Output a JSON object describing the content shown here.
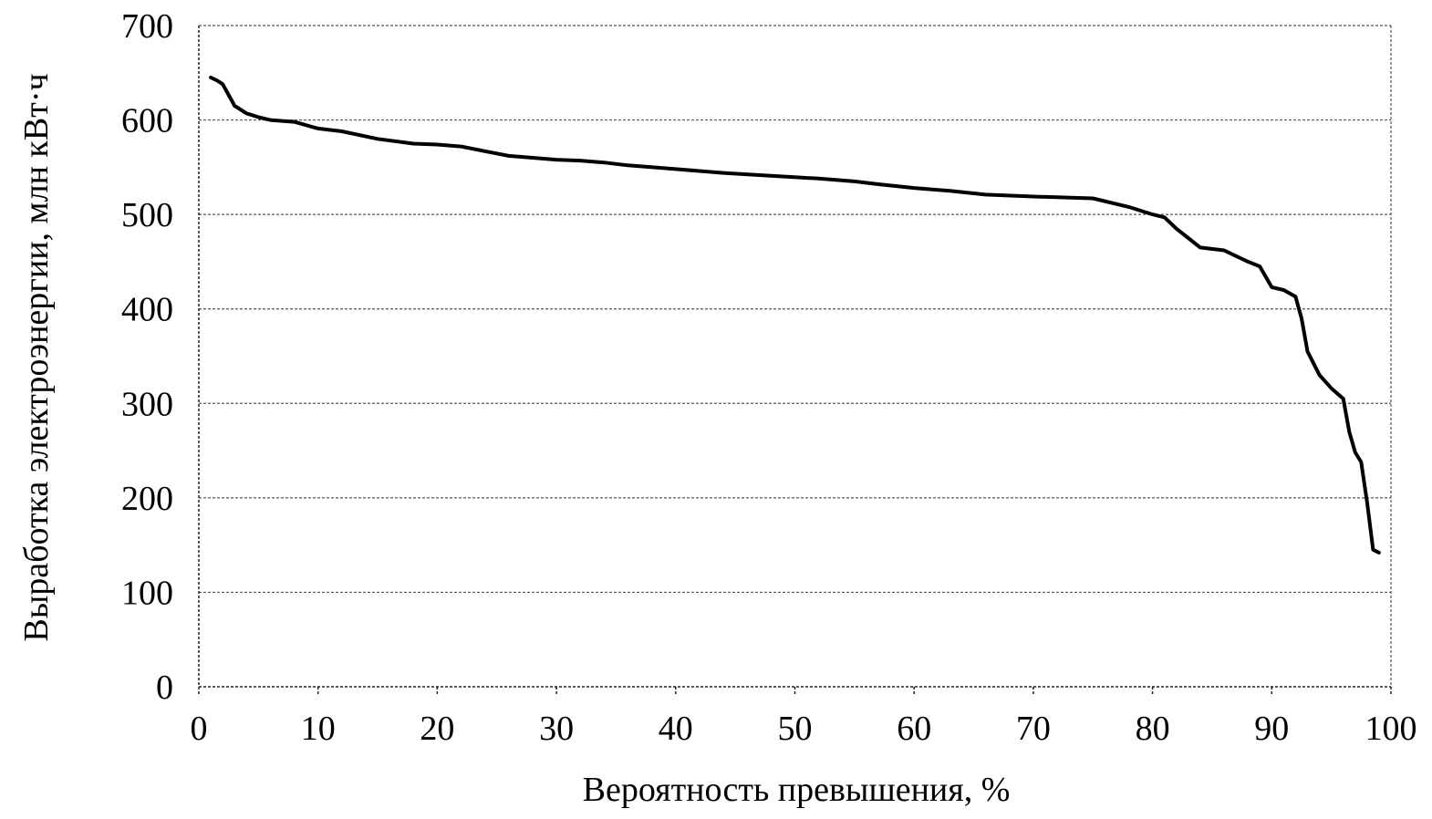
{
  "chart_data": {
    "type": "line",
    "title": "",
    "xlabel": "Вероятность превышения, %",
    "ylabel": "Выработка электроэнергии, млн кВт·ч",
    "xlim": [
      0,
      100
    ],
    "ylim": [
      0,
      700
    ],
    "x_ticks": [
      0,
      10,
      20,
      30,
      40,
      50,
      60,
      70,
      80,
      90,
      100
    ],
    "y_ticks": [
      0,
      100,
      200,
      300,
      400,
      500,
      600,
      700
    ],
    "grid": true,
    "legend": "none",
    "colors": {
      "line": "#000000",
      "grid": "#555555"
    },
    "series": [
      {
        "x": [
          1,
          1.5,
          2,
          3,
          4,
          5,
          6,
          8,
          10,
          12,
          15,
          18,
          20,
          22,
          24,
          26,
          28,
          30,
          32,
          34,
          36,
          40,
          44,
          48,
          52,
          55,
          57,
          60,
          63,
          66,
          70,
          75,
          78,
          80,
          81,
          82,
          83,
          84,
          86,
          88,
          89,
          90,
          91,
          92,
          92.5,
          93,
          94,
          95,
          96,
          96.5,
          97,
          97.5,
          98,
          98.5,
          99
        ],
        "y": [
          645,
          642,
          638,
          615,
          607,
          603,
          600,
          598,
          591,
          588,
          580,
          575,
          574,
          572,
          567,
          562,
          560,
          558,
          557,
          555,
          552,
          548,
          544,
          541,
          538,
          535,
          532,
          528,
          525,
          521,
          519,
          517,
          508,
          500,
          497,
          485,
          475,
          465,
          462,
          450,
          445,
          423,
          420,
          413,
          390,
          355,
          330,
          316,
          305,
          270,
          248,
          238,
          195,
          145,
          142
        ]
      }
    ]
  }
}
